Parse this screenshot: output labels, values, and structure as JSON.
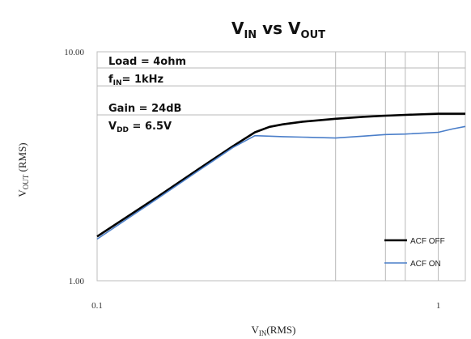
{
  "chart_data": {
    "type": "line",
    "title": {
      "main": "V",
      "sub1": "IN",
      "mid": " vs V",
      "sub2": "OUT"
    },
    "xlabel": {
      "main": "V",
      "sub": "IN",
      "rest": "(RMS)"
    },
    "ylabel": {
      "main": "V",
      "sub": "OUT",
      "rest": " (RMS)"
    },
    "x_scale": "log",
    "y_scale": "log",
    "xlim": [
      0.1,
      1.2
    ],
    "ylim": [
      1.0,
      10.0
    ],
    "x_ticks": [
      {
        "value": 0.1,
        "label": "0.1"
      },
      {
        "value": 1,
        "label": "1"
      }
    ],
    "y_ticks": [
      {
        "value": 1.0,
        "label": "1.00"
      },
      {
        "value": 10.0,
        "label": "10.00"
      }
    ],
    "grid_x": [
      0.5,
      0.7,
      0.8,
      1.0
    ],
    "grid_y": [
      8.5,
      7.1,
      5.3
    ],
    "annotations": [
      {
        "main": "Load = 4ohm"
      },
      {
        "main": "f",
        "sub": "IN",
        "rest": "= 1kHz"
      },
      {
        "main": "Gain = 24dB"
      },
      {
        "main": "V",
        "sub": "DD",
        "rest": " = 6.5V"
      }
    ],
    "legend_position": "bottom-right",
    "series": [
      {
        "name": "ACF OFF",
        "color": "#000000",
        "x": [
          0.1,
          0.15,
          0.2,
          0.25,
          0.29,
          0.32,
          0.35,
          0.4,
          0.5,
          0.6,
          0.7,
          0.8,
          1.0,
          1.2
        ],
        "y": [
          1.56,
          2.32,
          3.1,
          3.87,
          4.45,
          4.7,
          4.82,
          4.95,
          5.1,
          5.2,
          5.26,
          5.3,
          5.36,
          5.36
        ]
      },
      {
        "name": "ACF ON",
        "color": "#4a7ec9",
        "x": [
          0.1,
          0.15,
          0.2,
          0.25,
          0.29,
          0.32,
          0.35,
          0.4,
          0.5,
          0.6,
          0.7,
          0.8,
          1.0,
          1.1,
          1.2
        ],
        "y": [
          1.52,
          2.28,
          3.05,
          3.82,
          4.3,
          4.28,
          4.26,
          4.24,
          4.2,
          4.28,
          4.35,
          4.37,
          4.45,
          4.6,
          4.72
        ]
      }
    ]
  }
}
